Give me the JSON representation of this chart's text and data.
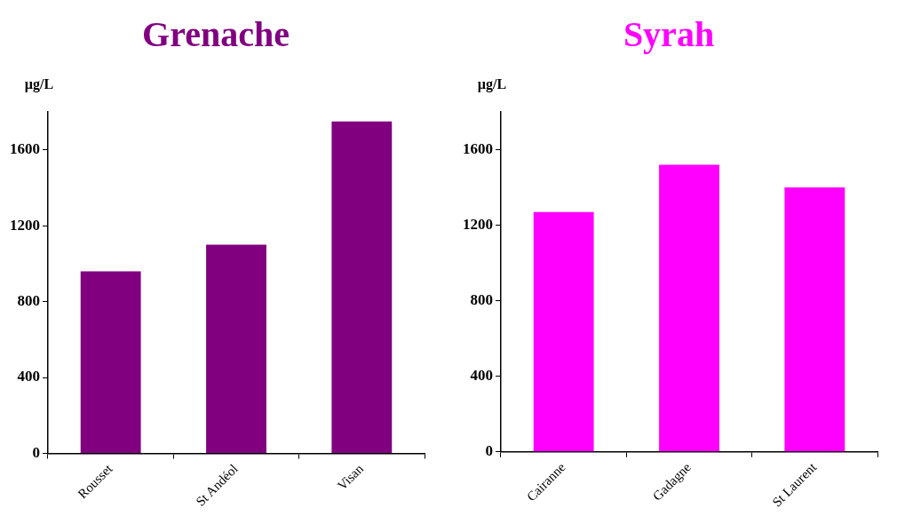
{
  "chart_data": [
    {
      "type": "bar",
      "title": "Grenache",
      "ylabel": "µg/L",
      "categories": [
        "Rousset",
        "St Andéol",
        "Visan"
      ],
      "values": [
        960,
        1100,
        1750
      ],
      "color": "#800080",
      "ylim": [
        0,
        1800
      ],
      "yticks": [
        0,
        400,
        800,
        1200,
        1600
      ],
      "grid": false
    },
    {
      "type": "bar",
      "title": "Syrah",
      "ylabel": "µg/L",
      "categories": [
        "Cairanne",
        "Gadagne",
        "St Laurent"
      ],
      "values": [
        1270,
        1520,
        1400
      ],
      "color": "#ff00ff",
      "ylim": [
        0,
        1800
      ],
      "yticks": [
        0,
        400,
        800,
        1200,
        1600
      ],
      "grid": false
    }
  ]
}
